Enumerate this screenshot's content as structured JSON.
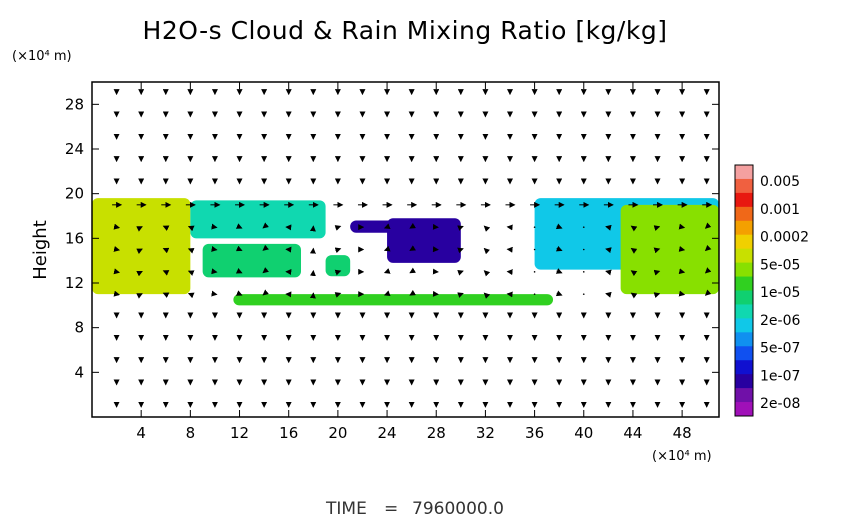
{
  "chart_data": {
    "type": "heatmap",
    "title": "H2O-s Cloud & Rain Mixing Ratio [kg/kg]",
    "ylabel": "Height",
    "x_unit": "(×10⁴ m)",
    "y_unit": "(×10⁴ m)",
    "xlim": [
      0,
      51
    ],
    "ylim": [
      0,
      30
    ],
    "x_ticks": [
      4,
      8,
      12,
      16,
      20,
      24,
      28,
      32,
      36,
      40,
      44,
      48
    ],
    "y_ticks": [
      4,
      8,
      12,
      16,
      20,
      24,
      28
    ],
    "x_tick_labels": [
      "4",
      "8",
      "12",
      "16",
      "20",
      "24",
      "28",
      "32",
      "36",
      "40",
      "44",
      "48"
    ],
    "y_tick_labels": [
      "4",
      "8",
      "12",
      "16",
      "20",
      "24",
      "28"
    ],
    "colorbar": {
      "labels": [
        "0.005",
        "0.001",
        "0.0002",
        "5e-05",
        "1e-05",
        "2e-06",
        "5e-07",
        "1e-07",
        "2e-08"
      ],
      "colors": [
        "#f4a0a0",
        "#f06040",
        "#e81810",
        "#f06818",
        "#f4a000",
        "#f0d000",
        "#c8e000",
        "#88e000",
        "#30d020",
        "#10d070",
        "#10d8b0",
        "#10c8e8",
        "#1090f0",
        "#1050f0",
        "#1010d0",
        "#2800a0",
        "#7010a8",
        "#a010b8"
      ]
    },
    "regions": [
      {
        "x0": 0.0,
        "x1": 8.0,
        "y0": 11.0,
        "y1": 19.6,
        "level": 6
      },
      {
        "x0": 8.0,
        "x1": 19.0,
        "y0": 16.0,
        "y1": 19.4,
        "level": 10
      },
      {
        "x0": 9.0,
        "x1": 17.0,
        "y0": 12.5,
        "y1": 15.5,
        "level": 9
      },
      {
        "x0": 19.0,
        "x1": 21.0,
        "y0": 12.6,
        "y1": 14.5,
        "level": 9
      },
      {
        "x0": 21.0,
        "x1": 26.0,
        "y0": 16.5,
        "y1": 17.6,
        "level": 15
      },
      {
        "x0": 24.0,
        "x1": 30.0,
        "y0": 13.8,
        "y1": 17.8,
        "level": 15
      },
      {
        "x0": 11.5,
        "x1": 37.5,
        "y0": 10.0,
        "y1": 11.0,
        "level": 8
      },
      {
        "x0": 36.0,
        "x1": 51.0,
        "y0": 13.2,
        "y1": 19.6,
        "level": 11
      },
      {
        "x0": 43.0,
        "x1": 51.0,
        "y0": 11.0,
        "y1": 19.0,
        "level": 7
      }
    ],
    "vector_field": {
      "x_spacing": 2,
      "y_spacing": 2
    }
  },
  "footer": {
    "time_label": "TIME",
    "time_eq": "=",
    "time_value": "7960000.0"
  }
}
